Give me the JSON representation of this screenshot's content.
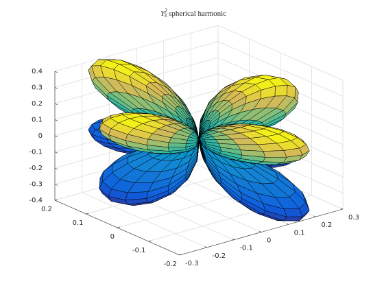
{
  "chart_data": {
    "type": "surface",
    "title": {
      "symbol": "Y",
      "l": 3,
      "m": 2,
      "text": "spherical harmonic"
    },
    "xlim": [
      -0.3,
      0.3
    ],
    "xticks": [
      -0.3,
      -0.2,
      -0.1,
      0,
      0.1,
      0.2,
      0.3
    ],
    "ylim": [
      -0.2,
      0.2
    ],
    "yticks": [
      -0.2,
      -0.1,
      0,
      0.1,
      0.2
    ],
    "zlim": [
      -0.4,
      0.4
    ],
    "zticks": [
      -0.4,
      -0.3,
      -0.2,
      -0.1,
      0,
      0.1,
      0.2,
      0.3,
      0.4
    ],
    "grid": true,
    "colormap": "parula"
  }
}
